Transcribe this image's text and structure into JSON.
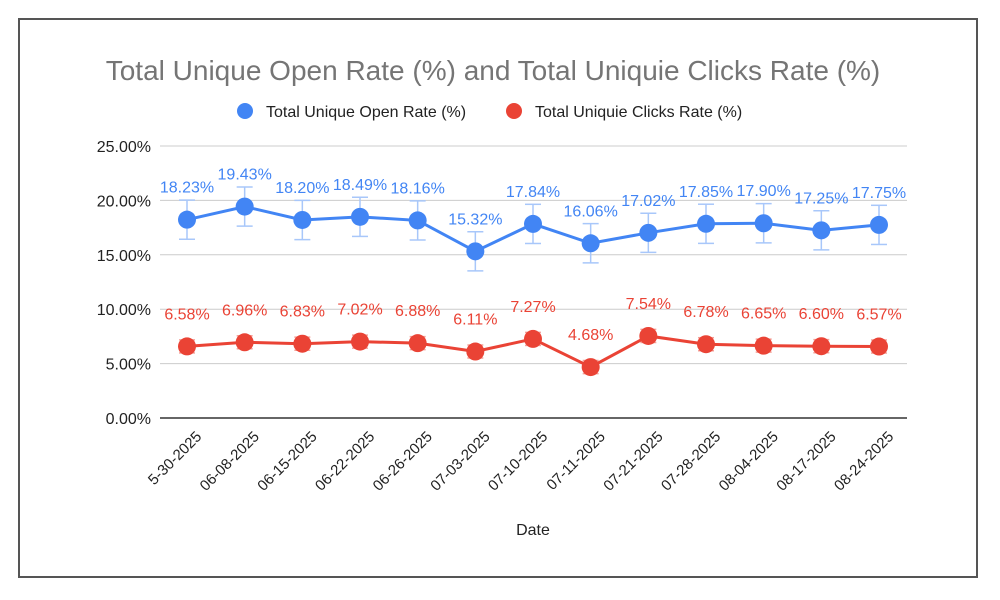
{
  "chart_data": {
    "type": "line",
    "title": "Total Unique Open Rate (%) and Total Uniquie Clicks Rate (%)",
    "xlabel": "Date",
    "ylabel": "",
    "ylim": [
      0,
      25
    ],
    "yticks": [
      "0.00%",
      "5.00%",
      "10.00%",
      "15.00%",
      "20.00%",
      "25.00%"
    ],
    "grid": true,
    "legend": "top",
    "categories": [
      "5-30-2025",
      "06-08-2025",
      "06-15-2025",
      "06-22-2025",
      "06-26-2025",
      "07-03-2025",
      "07-10-2025",
      "07-11-2025",
      "07-21-2025",
      "07-28-2025",
      "08-04-2025",
      "08-17-2025",
      "08-24-2025"
    ],
    "series": [
      {
        "name": "Total Unique Open Rate (%)",
        "color": "#4285f4",
        "error_bar": 1.8,
        "values": [
          18.23,
          19.43,
          18.2,
          18.49,
          18.16,
          15.32,
          17.84,
          16.06,
          17.02,
          17.85,
          17.9,
          17.25,
          17.75
        ],
        "labels": [
          "18.23%",
          "19.43%",
          "18.20%",
          "18.49%",
          "18.16%",
          "15.32%",
          "17.84%",
          "16.06%",
          "17.02%",
          "17.85%",
          "17.90%",
          "17.25%",
          "17.75%"
        ]
      },
      {
        "name": "Total Uniquie Clicks Rate (%)",
        "color": "#ea4335",
        "error_bar": 0.6,
        "values": [
          6.58,
          6.96,
          6.83,
          7.02,
          6.88,
          6.11,
          7.27,
          4.68,
          7.54,
          6.78,
          6.65,
          6.6,
          6.57
        ],
        "labels": [
          "6.58%",
          "6.96%",
          "6.83%",
          "7.02%",
          "6.88%",
          "6.11%",
          "7.27%",
          "4.68%",
          "7.54%",
          "6.78%",
          "6.65%",
          "6.60%",
          "6.57%"
        ]
      }
    ]
  }
}
